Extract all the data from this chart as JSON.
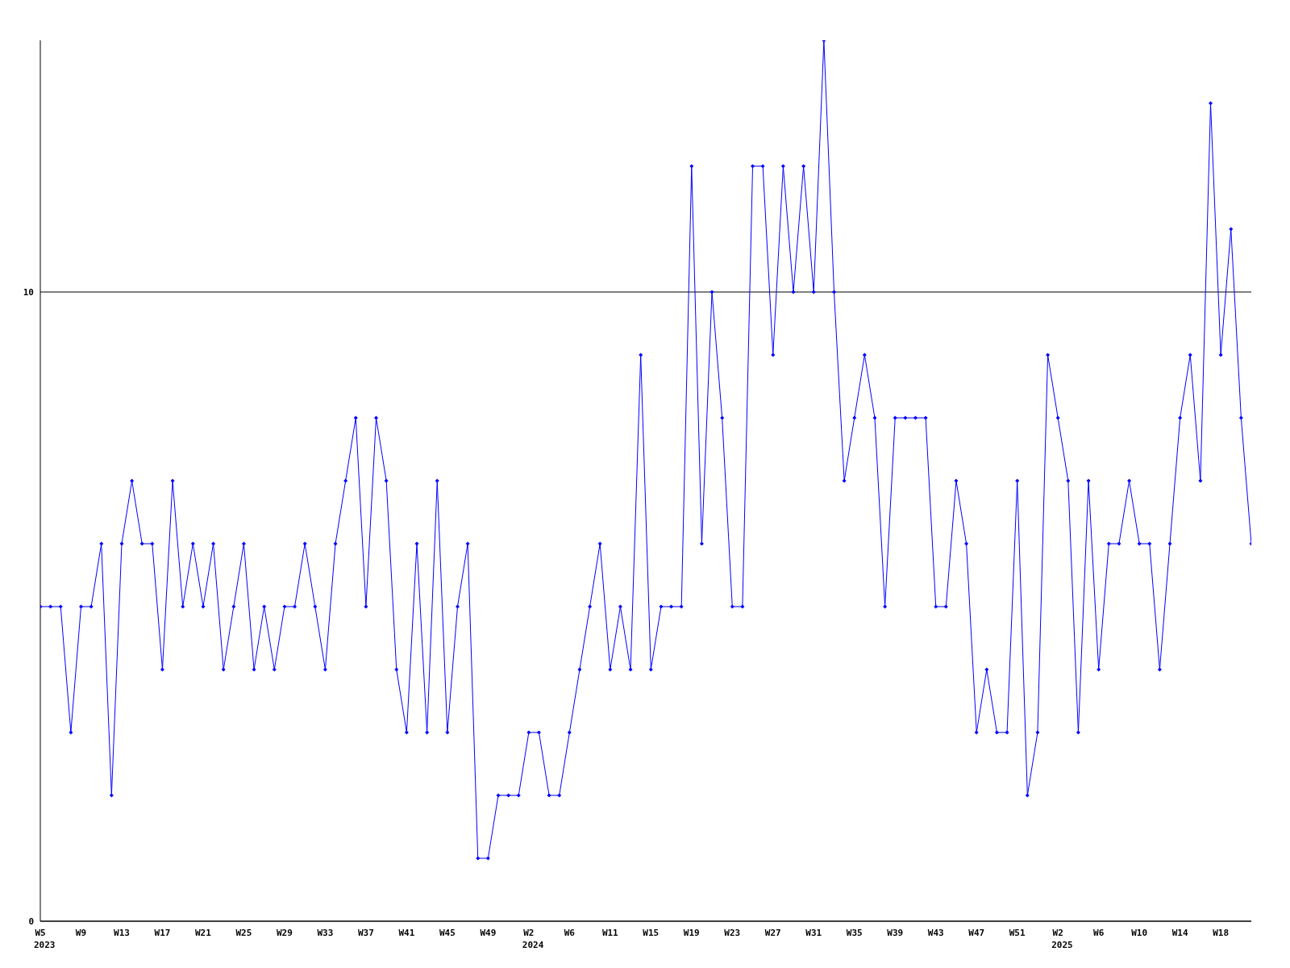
{
  "chart_data": {
    "type": "line",
    "categories": [
      "W5\n2023",
      null,
      null,
      null,
      "W9",
      null,
      null,
      null,
      "W13",
      null,
      null,
      null,
      "W17",
      null,
      null,
      null,
      "W21",
      null,
      null,
      null,
      "W25",
      null,
      null,
      null,
      "W29",
      null,
      null,
      null,
      "W33",
      null,
      null,
      null,
      "W37",
      null,
      null,
      null,
      "W41",
      null,
      null,
      null,
      "W45",
      null,
      null,
      null,
      "W49",
      null,
      null,
      null,
      "W2\n2024",
      null,
      null,
      null,
      "W6",
      null,
      null,
      null,
      "W11",
      null,
      null,
      null,
      "W15",
      null,
      null,
      null,
      "W19",
      null,
      null,
      null,
      "W23",
      null,
      null,
      null,
      "W27",
      null,
      null,
      null,
      "W31",
      null,
      null,
      null,
      "W35",
      null,
      null,
      null,
      "W39",
      null,
      null,
      null,
      "W43",
      null,
      null,
      null,
      "W47",
      null,
      null,
      null,
      "W51",
      null,
      null,
      null,
      "W2\n2025",
      null,
      null,
      null,
      "W6",
      null,
      null,
      null,
      "W10",
      null,
      null,
      null,
      "W14",
      null,
      null,
      null,
      "W18",
      null,
      null,
      null
    ],
    "series": [
      {
        "color": "#0000ff",
        "values": [
          5,
          5,
          5,
          3,
          5,
          5,
          6,
          2,
          6,
          7,
          6,
          6,
          4,
          7,
          5,
          6,
          5,
          6,
          4,
          5,
          6,
          4,
          5,
          4,
          5,
          5,
          6,
          5,
          4,
          6,
          7,
          8,
          5,
          8,
          7,
          4,
          3,
          6,
          3,
          7,
          3,
          5,
          6,
          1,
          1,
          2,
          2,
          2,
          3,
          3,
          2,
          2,
          3,
          4,
          5,
          6,
          4,
          5,
          4,
          9,
          4,
          5,
          5,
          5,
          12,
          6,
          10,
          8,
          5,
          5,
          12,
          12,
          9,
          12,
          10,
          12,
          10,
          14,
          10,
          7,
          8,
          9,
          8,
          5,
          8,
          8,
          8,
          8,
          5,
          5,
          7,
          6,
          3,
          4,
          3,
          3,
          7,
          2,
          3,
          9,
          8,
          7,
          3,
          7,
          4,
          6,
          6,
          7,
          6,
          6,
          4,
          6,
          8,
          9,
          7,
          13,
          9,
          11,
          8,
          6
        ]
      }
    ],
    "ylim": [
      0,
      14
    ],
    "yticks": [
      0,
      10
    ],
    "grid": "y",
    "marker": "diamond",
    "line_style": "solid"
  }
}
